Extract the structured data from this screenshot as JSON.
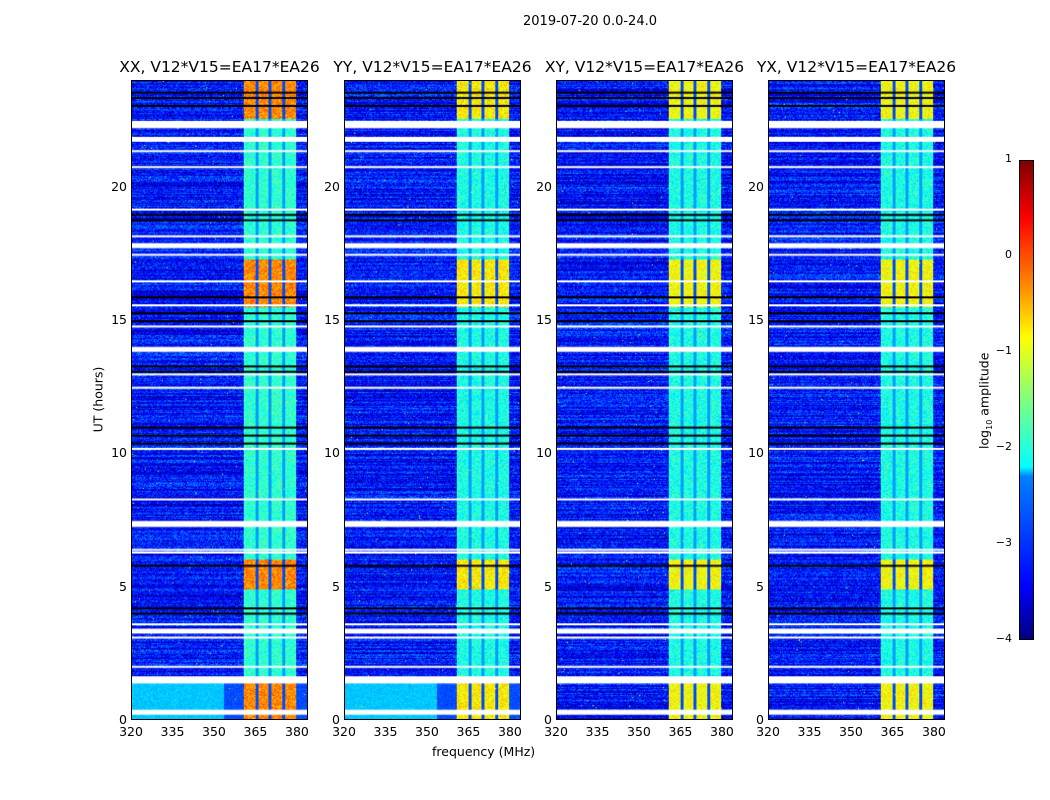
{
  "chart_data": {
    "type": "heatmap",
    "title": "2019-07-20 0.0-24.0",
    "xlabel": "frequency (MHz)",
    "ylabel": "UT (hours)",
    "xlim": [
      320,
      384
    ],
    "ylim": [
      0,
      24
    ],
    "xticks": [
      "320",
      "335",
      "350",
      "365",
      "380"
    ],
    "yticks": [
      "0",
      "5",
      "10",
      "15",
      "20"
    ],
    "colorbar": {
      "label_prefix": "log",
      "label_sub": "10",
      "label_suffix": " amplitude",
      "range": [
        -4,
        1
      ],
      "ticks": [
        "1",
        "0",
        "−1",
        "−2",
        "−3",
        "−4"
      ],
      "colormap": "jet"
    },
    "rfi_band_mhz": [
      360.5,
      380
    ],
    "subband_gaps_mhz": [
      365.5,
      370.2,
      375.2
    ],
    "flagged_hours": [
      0.35,
      1.55,
      1.6,
      2.0,
      3.1,
      3.4,
      3.6,
      6.3,
      6.4,
      7.3,
      7.45,
      8.3,
      10.2,
      12.5,
      13.0,
      14.0,
      14.8,
      15.6,
      16.5,
      17.5,
      17.9,
      18.2,
      19.2,
      20.8,
      21.4,
      21.9,
      22.4,
      22.5
    ],
    "dark_hours": [
      4.0,
      4.2,
      5.8,
      10.4,
      10.7,
      11.0,
      13.1,
      13.3,
      15.0,
      15.3,
      15.9,
      18.8,
      19.0,
      23.1,
      23.4,
      23.6
    ],
    "panels": [
      {
        "title": "XX, V12*V15=EA17*EA26",
        "band_level": -1.9,
        "hot_level": -0.3
      },
      {
        "title": "YY, V12*V15=EA17*EA26",
        "band_level": -2.0,
        "hot_level": -0.8
      },
      {
        "title": "XY, V12*V15=EA17*EA26",
        "band_level": -2.0,
        "hot_level": -0.9
      },
      {
        "title": "YX, V12*V15=EA17*EA26",
        "band_level": -2.0,
        "hot_level": -0.9
      }
    ],
    "hot_intervals_hours": [
      [
        0,
        1.5
      ],
      [
        4.9,
        6.0
      ],
      [
        15.5,
        17.3
      ],
      [
        22.6,
        24
      ]
    ],
    "background_level": -3.3
  }
}
